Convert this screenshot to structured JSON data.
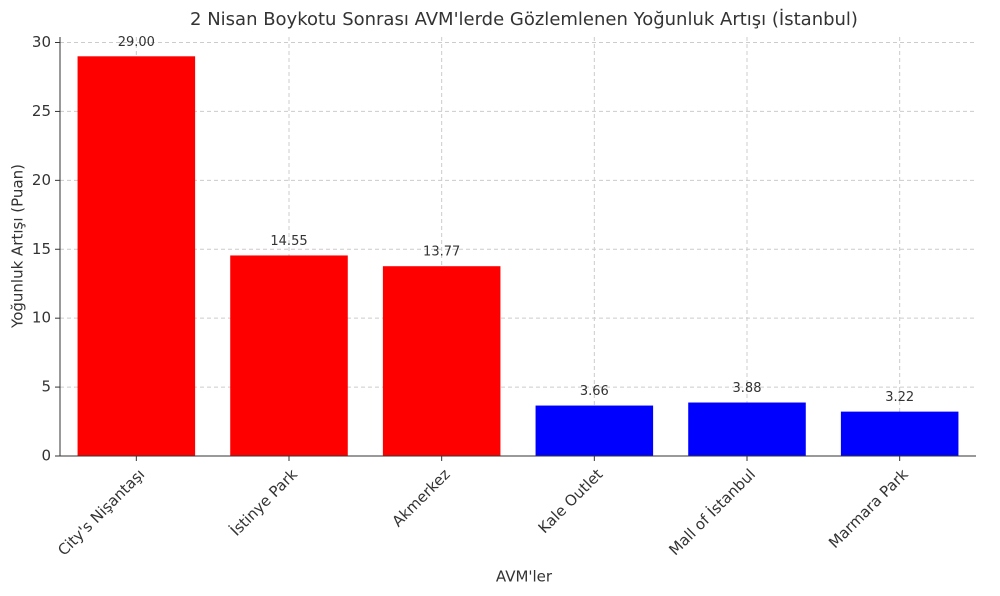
{
  "chart_data": {
    "type": "bar",
    "title": "2 Nisan Boykotu Sonrası AVM'lerde Gözlemlenen Yoğunluk Artışı (İstanbul)",
    "x_label": "AVM'ler",
    "y_label": "Yoğunluk Artışı (Puan)",
    "categories": [
      "City's Nişantaşı",
      "İstinye Park",
      "Akmerkez",
      "Kale Outlet",
      "Mall of İstanbul",
      "Marmara Park"
    ],
    "values": [
      29,
      14.55,
      13.77,
      3.66,
      3.88,
      3.22
    ],
    "value_labels": [
      "29.00",
      "14.55",
      "13.77",
      "3.66",
      "3.88",
      "3.22"
    ],
    "colors": [
      "#ff0000",
      "#ff0000",
      "#ff0000",
      "#0000ff",
      "#0000ff",
      "#0000ff"
    ],
    "ylim": [
      0,
      30.4
    ],
    "yticks": [
      0,
      5,
      10,
      15,
      20,
      25,
      30
    ],
    "grid": true
  }
}
